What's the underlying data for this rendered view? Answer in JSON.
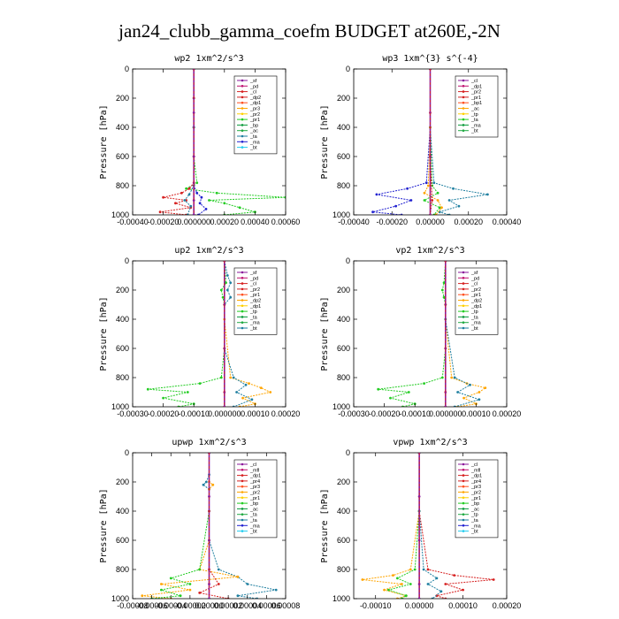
{
  "figure": {
    "title": "jan24_clubb_gamma_coefm  BUDGET at260E,-2N"
  },
  "colors": {
    "purple": "#8b1a9b",
    "red": "#d62020",
    "orange": "#ffa500",
    "green": "#22cc22",
    "teal": "#1f7fa0",
    "blue": "#2020d0",
    "cyan": "#22ccee",
    "darkred": "#b01818",
    "darkgreen": "#0a7a2a",
    "gold": "#ffd000"
  },
  "chart_data": [
    {
      "type": "line",
      "title": "wp2  1xm^2/s^3",
      "ylabel": "Pressure [hPa]",
      "xlim": [
        -0.0004,
        0.0006
      ],
      "ylim": [
        1000,
        0
      ],
      "xticks": [
        -0.0004,
        -0.0002,
        0.0,
        0.0002,
        0.0004,
        0.0006
      ],
      "xtick_labels": [
        "-0.00040",
        "-0.00020",
        "0.000000",
        "0.00020",
        "0.00040",
        "0.00060"
      ],
      "yticks": [
        0,
        200,
        400,
        600,
        800,
        1000
      ],
      "ytick_labels": [
        "0",
        "200",
        "400",
        "600",
        "800",
        "1000"
      ],
      "legend": [
        "_sf",
        "_pd",
        "_cl",
        "_dp2",
        "_dp1",
        "_pr3",
        "_pr2",
        "_pr1",
        "_bp",
        "_ac",
        "_ta",
        "_ma",
        "_bt"
      ],
      "series": [
        {
          "name": "_pr1",
          "color": "#22cc22",
          "y": [
            0,
            200,
            400,
            600,
            780,
            820,
            850,
            880,
            900,
            920,
            950,
            980,
            1000
          ],
          "x": [
            0,
            0,
            0,
            0,
            2e-05,
            -5e-05,
            0.00015,
            0.0006,
            0.0001,
            0.0002,
            0.0003,
            0.0004,
            0.0002
          ]
        },
        {
          "name": "_dp1",
          "color": "#d62020",
          "y": [
            0,
            200,
            400,
            600,
            780,
            820,
            850,
            880,
            900,
            920,
            950,
            980,
            1000
          ],
          "x": [
            0,
            0,
            0,
            0,
            0,
            -3e-05,
            -8e-05,
            -0.0002,
            -5e-05,
            -0.00012,
            -2e-05,
            -0.00022,
            -5e-05
          ]
        },
        {
          "name": "_bp",
          "color": "#2020d0",
          "y": [
            0,
            400,
            800,
            850,
            880,
            920,
            960,
            1000
          ],
          "x": [
            0,
            0,
            0,
            2e-05,
            5e-05,
            4e-05,
            8e-05,
            3e-05
          ]
        },
        {
          "name": "_ac",
          "color": "#1f7fa0",
          "y": [
            0,
            400,
            800,
            860,
            900,
            940,
            1000
          ],
          "x": [
            0,
            0,
            0,
            -3e-05,
            -6e-05,
            -2e-05,
            -4e-05
          ]
        },
        {
          "name": "_sf",
          "color": "#8b1a9b",
          "y": [
            0,
            300,
            600,
            900,
            1000
          ],
          "x": [
            0,
            0,
            0,
            0,
            0
          ]
        }
      ]
    },
    {
      "type": "line",
      "title": "wp3  1xm^{3} s^{-4}",
      "ylabel": "Pressure [hPa]",
      "xlim": [
        -0.0004,
        0.0004
      ],
      "ylim": [
        1000,
        0
      ],
      "xticks": [
        -0.0004,
        -0.0002,
        0.0,
        0.0002,
        0.0004
      ],
      "xtick_labels": [
        "-0.00040",
        "-0.00020",
        "0.00000",
        "0.00020",
        "0.00040"
      ],
      "yticks": [
        0,
        200,
        400,
        600,
        800,
        1000
      ],
      "ytick_labels": [
        "0",
        "200",
        "400",
        "600",
        "800",
        "1000"
      ],
      "legend": [
        "_cl",
        "_dp1",
        "_pr2",
        "_pr1",
        "_bp1",
        "_ac",
        "_tp",
        "_ta",
        "_ma",
        "_bt"
      ],
      "series": [
        {
          "name": "_tp",
          "color": "#1f7fa0",
          "y": [
            0,
            400,
            780,
            820,
            860,
            900,
            940,
            980,
            1000
          ],
          "x": [
            0,
            0,
            2e-05,
            0.00012,
            0.0003,
            0.0001,
            0.00015,
            5e-05,
            0.0001
          ]
        },
        {
          "name": "_ta",
          "color": "#2020d0",
          "y": [
            0,
            400,
            780,
            820,
            860,
            900,
            940,
            980,
            1000
          ],
          "x": [
            0,
            0,
            -2e-05,
            -0.00012,
            -0.00028,
            -0.0001,
            -0.00018,
            -0.0003,
            -0.00015
          ]
        },
        {
          "name": "_pr1",
          "color": "#22cc22",
          "y": [
            0,
            400,
            800,
            850,
            900,
            950,
            1000
          ],
          "x": [
            0,
            0,
            1e-05,
            4e-05,
            -3e-05,
            5e-05,
            2e-05
          ]
        },
        {
          "name": "_pr2",
          "color": "#ffa500",
          "y": [
            0,
            400,
            800,
            850,
            900,
            950,
            1000
          ],
          "x": [
            0,
            0,
            -1e-05,
            -3e-05,
            4e-05,
            6e-05,
            3e-05
          ]
        },
        {
          "name": "_dp1",
          "color": "#d62020",
          "y": [
            0,
            300,
            600,
            900,
            1000
          ],
          "x": [
            0,
            0,
            0,
            1e-05,
            0
          ]
        }
      ]
    },
    {
      "type": "line",
      "title": "up2  1xm^2/s^3",
      "ylabel": "Pressure [hPa]",
      "xlim": [
        -0.0003,
        0.0002
      ],
      "ylim": [
        1000,
        0
      ],
      "xticks": [
        -0.0003,
        -0.0002,
        -0.0001,
        0.0,
        0.0001,
        0.0002
      ],
      "xtick_labels": [
        "-0.00030",
        "-0.00020",
        "-0.00010",
        "0.000000",
        "0.00010",
        "0.00020"
      ],
      "yticks": [
        0,
        200,
        400,
        600,
        800,
        1000
      ],
      "ytick_labels": [
        "0",
        "200",
        "400",
        "600",
        "800",
        "1000"
      ],
      "legend": [
        "_sf",
        "_pd",
        "_cl",
        "_pr2",
        "_pr1",
        "_dp2",
        "_dp1",
        "_tp",
        "_ta",
        "_ma",
        "_bt"
      ],
      "series": [
        {
          "name": "_pr1",
          "color": "#22cc22",
          "y": [
            0,
            150,
            200,
            250,
            300,
            600,
            800,
            840,
            880,
            900,
            940,
            980,
            1000
          ],
          "x": [
            0,
            5e-06,
            -1e-05,
            -5e-06,
            0,
            0,
            -1e-05,
            -8e-05,
            -0.00025,
            -0.00012,
            -0.0002,
            -0.0001,
            -0.00015
          ]
        },
        {
          "name": "_pr2",
          "color": "#ffa500",
          "y": [
            0,
            400,
            800,
            840,
            870,
            900,
            940,
            980,
            1000
          ],
          "x": [
            0,
            0,
            2e-05,
            8e-05,
            0.00012,
            0.00015,
            6e-05,
            0.0001,
            5e-05
          ]
        },
        {
          "name": "_tp",
          "color": "#1f7fa0",
          "y": [
            0,
            100,
            150,
            200,
            250,
            300,
            600,
            800,
            850,
            900,
            950,
            1000
          ],
          "x": [
            0,
            1e-05,
            2e-05,
            1e-05,
            2e-05,
            0,
            0,
            3e-05,
            7e-05,
            4e-05,
            9e-05,
            3e-05
          ]
        },
        {
          "name": "_dp1",
          "color": "#d62020",
          "y": [
            0,
            300,
            600,
            900,
            1000
          ],
          "x": [
            0,
            0,
            0,
            0,
            0
          ]
        }
      ]
    },
    {
      "type": "line",
      "title": "vp2  1xm^2/s^3",
      "ylabel": "Pressure [hPa]",
      "xlim": [
        -0.0003,
        0.0002
      ],
      "ylim": [
        1000,
        0
      ],
      "xticks": [
        -0.0003,
        -0.0002,
        -0.0001,
        0.0,
        0.0001,
        0.0002
      ],
      "xtick_labels": [
        "-0.00030",
        "-0.00020",
        "-0.00010",
        "0.000000",
        "0.00010",
        "0.00020"
      ],
      "yticks": [
        0,
        200,
        400,
        600,
        800,
        1000
      ],
      "ytick_labels": [
        "0",
        "200",
        "400",
        "600",
        "800",
        "1000"
      ],
      "legend": [
        "_sf",
        "_pd",
        "_cl",
        "_pr2",
        "_pr1",
        "_dp2",
        "_dp1",
        "_tp",
        "_ta",
        "_ma",
        "_bt"
      ],
      "series": [
        {
          "name": "_pr1",
          "color": "#22cc22",
          "y": [
            0,
            150,
            200,
            250,
            300,
            600,
            800,
            840,
            880,
            900,
            940,
            980,
            1000
          ],
          "x": [
            0,
            -5e-06,
            -1e-05,
            -5e-06,
            0,
            0,
            -1e-05,
            -7e-05,
            -0.00022,
            -0.00012,
            -0.00018,
            -0.0001,
            -0.00014
          ]
        },
        {
          "name": "_pr2",
          "color": "#ffa500",
          "y": [
            0,
            400,
            800,
            840,
            870,
            900,
            940,
            980,
            1000
          ],
          "x": [
            0,
            0,
            2e-05,
            7e-05,
            0.00013,
            0.00011,
            6e-05,
            0.0001,
            4e-05
          ]
        },
        {
          "name": "_tp",
          "color": "#1f7fa0",
          "y": [
            0,
            400,
            800,
            850,
            900,
            950,
            1000
          ],
          "x": [
            0,
            0,
            3e-05,
            8e-05,
            4e-05,
            0.00011,
            3e-05
          ]
        },
        {
          "name": "_dp1",
          "color": "#d62020",
          "y": [
            0,
            300,
            600,
            900,
            1000
          ],
          "x": [
            0,
            0,
            0,
            0,
            0
          ]
        }
      ]
    },
    {
      "type": "line",
      "title": "upwp  1xm^2/s^3",
      "ylabel": "Pressure [hPa]",
      "xlim": [
        -8e-05,
        8e-05
      ],
      "ylim": [
        1000,
        0
      ],
      "xticks": [
        -8e-05,
        -6e-05,
        -4e-05,
        -2e-05,
        0.0,
        2e-05,
        4e-05,
        6e-05,
        8e-05
      ],
      "xtick_labels": [
        "-0.00008",
        "-0.00006",
        "-0.00004",
        "-0.00002",
        "0.00000",
        "0.00002",
        "0.00004",
        "0.00006",
        "0.00008"
      ],
      "yticks": [
        0,
        200,
        400,
        600,
        800,
        1000
      ],
      "ytick_labels": [
        "0",
        "200",
        "400",
        "600",
        "800",
        "1000"
      ],
      "legend": [
        "_cl",
        "_mfl",
        "_dp1",
        "_pr4",
        "_pr3",
        "_pr2",
        "_pr1",
        "_bp",
        "_ac",
        "_ta",
        "_ta",
        "_ma",
        "_bt"
      ],
      "series": [
        {
          "name": "_ta",
          "color": "#1f7fa0",
          "y": [
            0,
            150,
            200,
            220,
            250,
            600,
            800,
            850,
            900,
            940,
            980,
            1000
          ],
          "x": [
            0,
            0,
            -3e-06,
            -6e-06,
            0,
            0,
            1e-05,
            3e-05,
            4e-05,
            7e-05,
            3e-05,
            5e-05
          ]
        },
        {
          "name": "_pr2",
          "color": "#ffa500",
          "y": [
            0,
            200,
            220,
            250,
            600,
            800,
            850,
            900,
            940,
            980,
            1000
          ],
          "x": [
            0,
            0,
            4e-06,
            0,
            0,
            -1e-05,
            3e-05,
            -5e-05,
            -2e-05,
            -7e-05,
            -4e-05
          ]
        },
        {
          "name": "_pr1",
          "color": "#22cc22",
          "y": [
            0,
            400,
            800,
            860,
            900,
            940,
            980,
            1000
          ],
          "x": [
            0,
            0,
            -1e-05,
            -4e-05,
            -2e-05,
            -5e-05,
            -3e-05,
            -6e-05
          ]
        },
        {
          "name": "_dp1",
          "color": "#d62020",
          "y": [
            0,
            400,
            800,
            900,
            960,
            1000
          ],
          "x": [
            0,
            0,
            0,
            1e-05,
            -1e-05,
            2e-05
          ]
        },
        {
          "name": "_cl",
          "color": "#8b1a9b",
          "y": [
            0,
            300,
            600,
            900,
            1000
          ],
          "x": [
            0,
            0,
            0,
            0,
            0
          ]
        }
      ]
    },
    {
      "type": "line",
      "title": "vpwp  1xm^2/s^3",
      "ylabel": "Pressure [hPa]",
      "xlim": [
        -0.00015,
        0.0002
      ],
      "ylim": [
        1000,
        0
      ],
      "xticks": [
        -0.0001,
        0.0,
        0.0001,
        0.0002
      ],
      "xtick_labels": [
        "-0.00010",
        "0.00000",
        "0.00010",
        "0.00020"
      ],
      "yticks": [
        0,
        200,
        400,
        600,
        800,
        1000
      ],
      "ytick_labels": [
        "0",
        "200",
        "400",
        "600",
        "800",
        "1000"
      ],
      "legend": [
        "_cl",
        "_mfl",
        "_dp1",
        "_pr4",
        "_pr3",
        "_pr2",
        "_pr1",
        "_bp",
        "_ac",
        "_tp",
        "_ta",
        "_ma",
        "_bt"
      ],
      "series": [
        {
          "name": "_tp",
          "color": "#d62020",
          "y": [
            0,
            400,
            800,
            840,
            870,
            900,
            940,
            980,
            1000
          ],
          "x": [
            0,
            0,
            2e-05,
            8e-05,
            0.00017,
            6e-05,
            0.0001,
            4e-05,
            6e-05
          ]
        },
        {
          "name": "_pr2",
          "color": "#ffa500",
          "y": [
            0,
            400,
            800,
            840,
            870,
            900,
            940,
            980,
            1000
          ],
          "x": [
            0,
            0,
            -2e-05,
            -6e-05,
            -0.00013,
            -4e-05,
            -8e-05,
            -3e-05,
            -5e-05
          ]
        },
        {
          "name": "_pr1",
          "color": "#22cc22",
          "y": [
            0,
            400,
            800,
            860,
            900,
            940,
            980,
            1000
          ],
          "x": [
            0,
            0,
            -1e-05,
            -5e-05,
            -2e-05,
            -7e-05,
            -3e-05,
            -4e-05
          ]
        },
        {
          "name": "_ac",
          "color": "#1f7fa0",
          "y": [
            0,
            400,
            800,
            860,
            900,
            950,
            1000
          ],
          "x": [
            0,
            0,
            1e-05,
            4e-05,
            2e-05,
            5e-05,
            3e-05
          ]
        },
        {
          "name": "_cl",
          "color": "#8b1a9b",
          "y": [
            0,
            300,
            600,
            900,
            1000
          ],
          "x": [
            0,
            0,
            0,
            0,
            0
          ]
        }
      ]
    }
  ]
}
